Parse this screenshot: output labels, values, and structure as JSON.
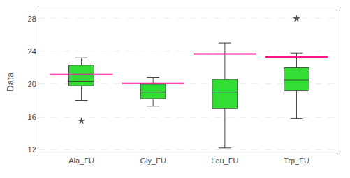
{
  "chart_data": {
    "type": "box",
    "categories": [
      "Ala_FU",
      "Gly_FU",
      "Leu_FU",
      "Trp_FU"
    ],
    "ylabel": "Data",
    "ylim": [
      11.5,
      29
    ],
    "yticks": [
      12,
      16,
      20,
      24,
      28
    ],
    "grid": true,
    "series": [
      {
        "type": "box",
        "color": "#33dd33",
        "q1": [
          19.8,
          18.2,
          17.0,
          19.2
        ],
        "median": [
          20.3,
          19.0,
          19.0,
          20.5
        ],
        "q3": [
          22.3,
          20.0,
          20.6,
          22.0
        ],
        "whislo": [
          18.0,
          17.3,
          12.2,
          15.8
        ],
        "whishi": [
          23.2,
          20.8,
          25.0,
          23.8
        ],
        "fliers": [
          [
            15.5
          ],
          [],
          [],
          [
            28.0
          ]
        ],
        "marker": "star"
      },
      {
        "type": "mean",
        "color": "#ff1493",
        "marker": "line",
        "values": [
          21.2,
          20.1,
          23.7,
          23.3
        ]
      }
    ]
  }
}
